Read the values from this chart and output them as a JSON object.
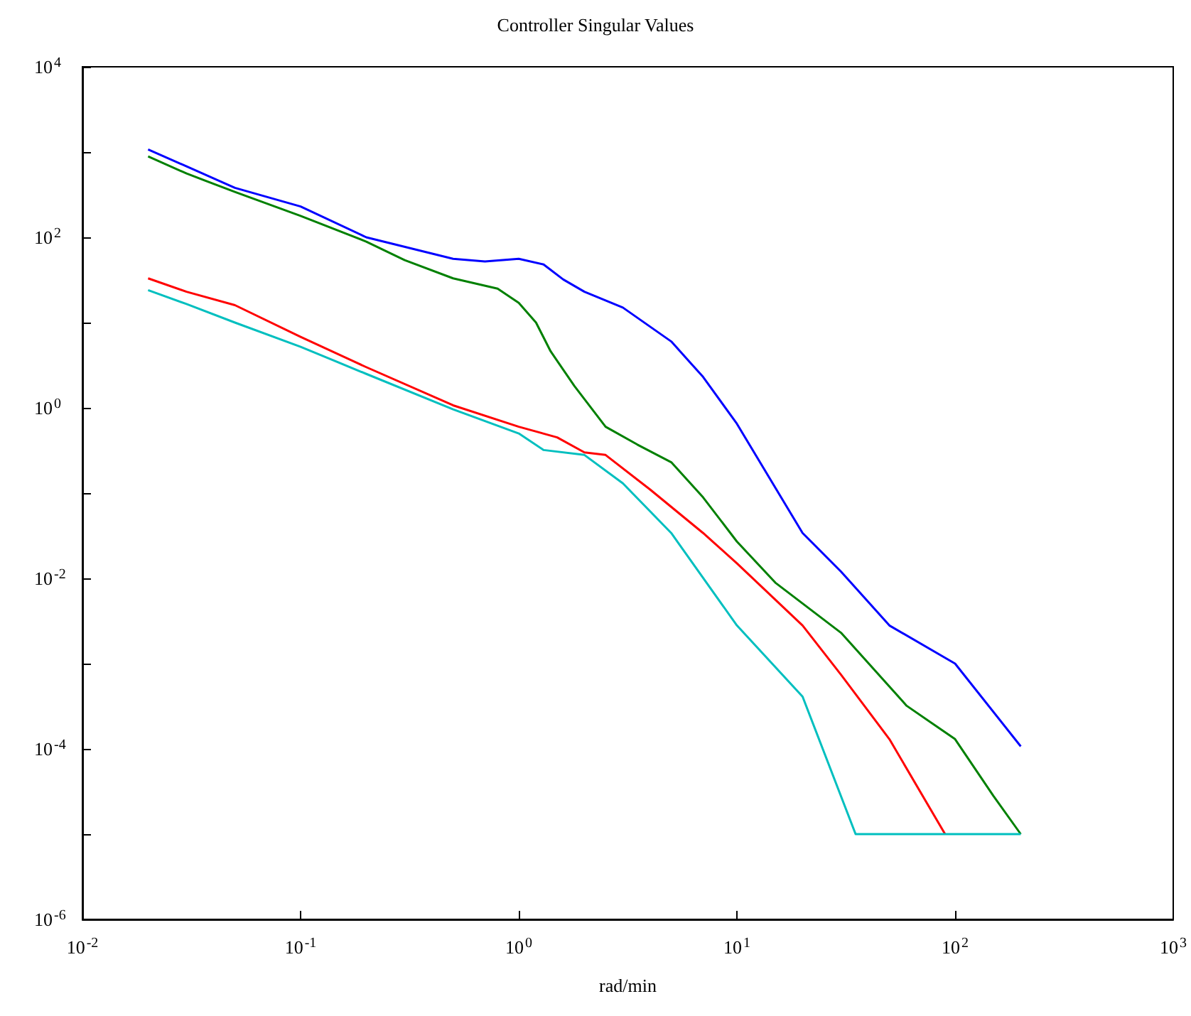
{
  "chart_data": {
    "type": "line",
    "title": "Controller Singular Values",
    "xlabel": "rad/min",
    "log": "xy",
    "grid": false,
    "marker": "none",
    "line_style": "solid",
    "xlim": [
      0.01,
      1000
    ],
    "ylim": [
      1e-06,
      10000
    ],
    "xticks": [
      {
        "value": 0.01,
        "label": "10$^{-2}$"
      },
      {
        "value": 0.1,
        "label": "10$^{-1}$"
      },
      {
        "value": 1,
        "label": "10$^{0}$"
      },
      {
        "value": 10,
        "label": "10$^{1}$"
      },
      {
        "value": 100,
        "label": "10$^{2}$"
      },
      {
        "value": 1000,
        "label": "10$^{3}$"
      }
    ],
    "yticks": [
      {
        "value": 1e-06,
        "label": "10$^{-6}$"
      },
      {
        "value": 1e-05,
        "label": null
      },
      {
        "value": 0.0001,
        "label": "10$^{-4}$"
      },
      {
        "value": 0.001,
        "label": null
      },
      {
        "value": 0.01,
        "label": "10$^{-2}$"
      },
      {
        "value": 0.1,
        "label": null
      },
      {
        "value": 1,
        "label": "10$^{0}$"
      },
      {
        "value": 10,
        "label": null
      },
      {
        "value": 100,
        "label": "10$^{2}$"
      },
      {
        "value": 1000,
        "label": null
      },
      {
        "value": 10000,
        "label": "10$^{4}$"
      }
    ],
    "series": [
      {
        "color": "#0000ff",
        "x": [
          0.02,
          0.03,
          0.05,
          0.1,
          0.2,
          0.5,
          0.7,
          1,
          1.3,
          1.6,
          2,
          3,
          5,
          7,
          10,
          20,
          30,
          50,
          100,
          200
        ],
        "values": [
          1070,
          680,
          380,
          230,
          100,
          56,
          52,
          56,
          48,
          32,
          23,
          15,
          6,
          2.3,
          0.65,
          0.034,
          0.012,
          0.0028,
          0.001,
          0.000107
        ]
      },
      {
        "color": "#008000",
        "x": [
          0.02,
          0.03,
          0.05,
          0.1,
          0.2,
          0.3,
          0.5,
          0.8,
          1,
          1.2,
          1.4,
          1.8,
          2.5,
          3.5,
          5,
          7,
          10,
          15,
          30,
          60,
          100,
          150,
          200
        ],
        "values": [
          890,
          560,
          340,
          178,
          89,
          54,
          33,
          25,
          17,
          10,
          4.6,
          1.8,
          0.6,
          0.37,
          0.23,
          0.089,
          0.027,
          0.0089,
          0.0023,
          0.00032,
          0.00013,
          2.8e-05,
          1e-05
        ]
      },
      {
        "color": "#ff0000",
        "x": [
          0.02,
          0.03,
          0.05,
          0.1,
          0.2,
          0.5,
          1,
          1.5,
          2,
          2.5,
          4,
          7,
          10,
          20,
          30,
          50,
          90
        ],
        "values": [
          33,
          23,
          16,
          6.8,
          3,
          1.07,
          0.6,
          0.45,
          0.3,
          0.28,
          0.11,
          0.034,
          0.015,
          0.0028,
          0.00074,
          0.00013,
          1e-05
        ]
      },
      {
        "color": "#00bfbf",
        "x": [
          0.02,
          0.03,
          0.05,
          0.1,
          0.2,
          0.5,
          1,
          1.3,
          2,
          3,
          5,
          10,
          20,
          35,
          200
        ],
        "values": [
          24,
          16.5,
          10,
          5.2,
          2.5,
          0.96,
          0.5,
          0.32,
          0.28,
          0.13,
          0.034,
          0.0028,
          0.00041,
          1e-05,
          1e-05
        ]
      }
    ]
  }
}
